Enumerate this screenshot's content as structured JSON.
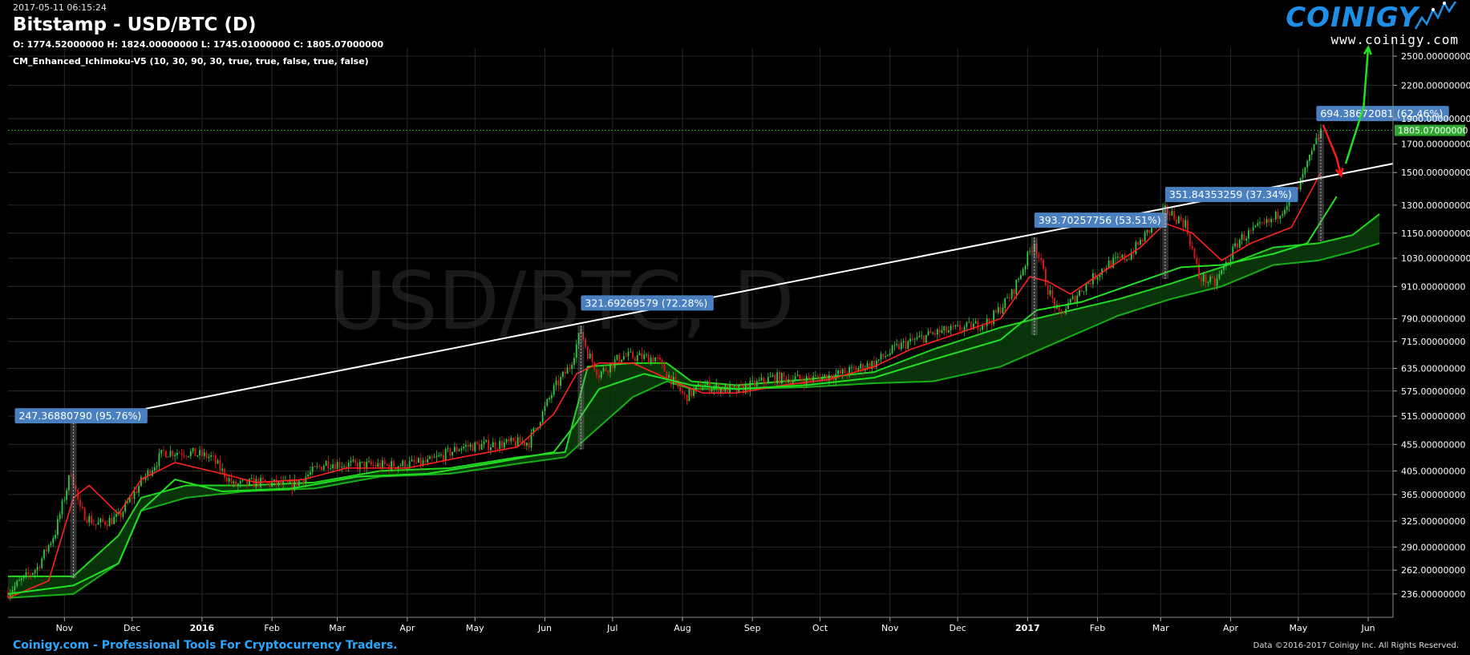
{
  "header": {
    "timestamp": "2017-05-11 06:15:24",
    "title": "Bitstamp - USD/BTC (D)",
    "ohlc": "O: 1774.52000000 H: 1824.00000000 L: 1745.01000000 C: 1805.07000000",
    "indicator": "CM_Enhanced_Ichimoku-V5 (10, 30, 90, 30, true, true, false, true, false)"
  },
  "logo": {
    "brand": "COINIGY",
    "url": "www.coinigy.com",
    "icon": "logo-spark-icon"
  },
  "watermark": "USD/BTC, D",
  "footer": {
    "left": "Coinigy.com - Professional Tools For Cryptocurrency Traders.",
    "right": "Data ©2016-2017 Coinigy Inc. All Rights Reserved."
  },
  "colors": {
    "background": "#000000",
    "grid": "#2a2a2a",
    "candle_up": "#2ecc40",
    "candle_down": "#e01818",
    "conversion_line": "#ff2020",
    "base_line": "#22e022",
    "cloud_bull": "#0a3a0a",
    "cloud_bear": "#3a0a0a",
    "trendline": "#ffffff",
    "label_bg": "#4a80c0",
    "price_tag": "#2ea82e"
  },
  "chart_data": {
    "type": "candlestick",
    "title": "Bitstamp - USD/BTC (D)",
    "xlabel": "",
    "ylabel": "",
    "x_tick_labels": [
      "Nov",
      "Dec",
      "2016",
      "Feb",
      "Mar",
      "Apr",
      "May",
      "Jun",
      "Jul",
      "Aug",
      "Sep",
      "Oct",
      "Nov",
      "Dec",
      "2017",
      "Feb",
      "Mar",
      "Apr",
      "May",
      "Jun"
    ],
    "x_tick_dates": [
      "2015-11-01",
      "2015-12-01",
      "2016-01-01",
      "2016-02-01",
      "2016-03-01",
      "2016-04-01",
      "2016-05-01",
      "2016-06-01",
      "2016-07-01",
      "2016-08-01",
      "2016-09-01",
      "2016-10-01",
      "2016-11-01",
      "2016-12-01",
      "2017-01-01",
      "2017-02-01",
      "2017-03-01",
      "2017-04-01",
      "2017-05-01",
      "2017-06-01"
    ],
    "xlim": [
      "2015-10-07",
      "2017-06-12"
    ],
    "y_scale": "log",
    "y_tick_labels": [
      "236.00000000",
      "262.00000000",
      "290.00000000",
      "325.00000000",
      "365.00000000",
      "405.00000000",
      "455.00000000",
      "515.00000000",
      "575.00000000",
      "635.00000000",
      "715.00000000",
      "790.00000000",
      "910.00000000",
      "1030.00000000",
      "1150.00000000",
      "1300.00000000",
      "1500.00000000",
      "1700.00000000",
      "1900.00000000",
      "2200.00000000",
      "2500.00000000"
    ],
    "y_tick_values": [
      236,
      262,
      290,
      325,
      365,
      405,
      455,
      515,
      575,
      635,
      715,
      790,
      910,
      1030,
      1150,
      1300,
      1500,
      1700,
      1900,
      2200,
      2500
    ],
    "ylim": [
      213,
      2590
    ],
    "grid": true,
    "last_price": {
      "label": "1805.07000000",
      "value": 1805.07
    },
    "price_key": [
      [
        "2015-10-07",
        238
      ],
      [
        "2015-10-20",
        265
      ],
      [
        "2015-10-28",
        310
      ],
      [
        "2015-11-04",
        405
      ],
      [
        "2015-11-08",
        340
      ],
      [
        "2015-11-15",
        320
      ],
      [
        "2015-11-25",
        330
      ],
      [
        "2015-12-05",
        385
      ],
      [
        "2015-12-15",
        440
      ],
      [
        "2015-12-25",
        440
      ],
      [
        "2016-01-05",
        430
      ],
      [
        "2016-01-15",
        380
      ],
      [
        "2016-01-25",
        385
      ],
      [
        "2016-02-10",
        380
      ],
      [
        "2016-02-25",
        420
      ],
      [
        "2016-03-10",
        415
      ],
      [
        "2016-03-25",
        415
      ],
      [
        "2016-04-10",
        420
      ],
      [
        "2016-04-25",
        450
      ],
      [
        "2016-05-10",
        455
      ],
      [
        "2016-05-25",
        460
      ],
      [
        "2016-06-05",
        580
      ],
      [
        "2016-06-12",
        640
      ],
      [
        "2016-06-17",
        750
      ],
      [
        "2016-06-20",
        680
      ],
      [
        "2016-06-25",
        620
      ],
      [
        "2016-07-05",
        670
      ],
      [
        "2016-07-20",
        665
      ],
      [
        "2016-08-02",
        560
      ],
      [
        "2016-08-10",
        590
      ],
      [
        "2016-08-25",
        575
      ],
      [
        "2016-09-10",
        610
      ],
      [
        "2016-09-25",
        605
      ],
      [
        "2016-10-10",
        620
      ],
      [
        "2016-10-25",
        650
      ],
      [
        "2016-11-05",
        700
      ],
      [
        "2016-11-20",
        740
      ],
      [
        "2016-12-05",
        760
      ],
      [
        "2016-12-15",
        780
      ],
      [
        "2016-12-25",
        880
      ],
      [
        "2017-01-04",
        1110
      ],
      [
        "2017-01-10",
        900
      ],
      [
        "2017-01-15",
        800
      ],
      [
        "2017-01-25",
        900
      ],
      [
        "2017-02-05",
        1000
      ],
      [
        "2017-02-15",
        1040
      ],
      [
        "2017-02-25",
        1180
      ],
      [
        "2017-03-03",
        1270
      ],
      [
        "2017-03-12",
        1200
      ],
      [
        "2017-03-18",
        950
      ],
      [
        "2017-03-25",
        920
      ],
      [
        "2017-04-05",
        1120
      ],
      [
        "2017-04-20",
        1220
      ],
      [
        "2017-05-01",
        1400
      ],
      [
        "2017-05-05",
        1550
      ],
      [
        "2017-05-11",
        1805
      ]
    ],
    "conversion_line": [
      [
        "2015-10-07",
        232
      ],
      [
        "2015-10-25",
        250
      ],
      [
        "2015-11-05",
        360
      ],
      [
        "2015-11-12",
        380
      ],
      [
        "2015-11-25",
        335
      ],
      [
        "2015-12-05",
        390
      ],
      [
        "2015-12-20",
        420
      ],
      [
        "2016-01-10",
        400
      ],
      [
        "2016-01-25",
        385
      ],
      [
        "2016-02-15",
        390
      ],
      [
        "2016-03-05",
        410
      ],
      [
        "2016-04-01",
        410
      ],
      [
        "2016-04-25",
        430
      ],
      [
        "2016-05-20",
        450
      ],
      [
        "2016-06-05",
        520
      ],
      [
        "2016-06-15",
        620
      ],
      [
        "2016-06-25",
        650
      ],
      [
        "2016-07-10",
        650
      ],
      [
        "2016-07-28",
        600
      ],
      [
        "2016-08-10",
        570
      ],
      [
        "2016-08-25",
        570
      ],
      [
        "2016-09-15",
        590
      ],
      [
        "2016-10-05",
        605
      ],
      [
        "2016-10-25",
        640
      ],
      [
        "2016-11-10",
        690
      ],
      [
        "2016-12-01",
        740
      ],
      [
        "2016-12-20",
        790
      ],
      [
        "2017-01-02",
        950
      ],
      [
        "2017-01-10",
        930
      ],
      [
        "2017-01-20",
        880
      ],
      [
        "2017-02-05",
        980
      ],
      [
        "2017-02-20",
        1080
      ],
      [
        "2017-03-03",
        1200
      ],
      [
        "2017-03-15",
        1150
      ],
      [
        "2017-03-28",
        1020
      ],
      [
        "2017-04-10",
        1100
      ],
      [
        "2017-04-28",
        1180
      ],
      [
        "2017-05-11",
        1500
      ]
    ],
    "base_line": [
      [
        "2015-10-07",
        236
      ],
      [
        "2015-11-05",
        245
      ],
      [
        "2015-11-25",
        270
      ],
      [
        "2015-12-05",
        340
      ],
      [
        "2015-12-20",
        390
      ],
      [
        "2016-01-10",
        370
      ],
      [
        "2016-02-10",
        375
      ],
      [
        "2016-03-10",
        395
      ],
      [
        "2016-04-10",
        400
      ],
      [
        "2016-05-10",
        420
      ],
      [
        "2016-06-05",
        440
      ],
      [
        "2016-06-15",
        500
      ],
      [
        "2016-06-25",
        580
      ],
      [
        "2016-07-15",
        620
      ],
      [
        "2016-08-05",
        590
      ],
      [
        "2016-08-25",
        580
      ],
      [
        "2016-09-25",
        590
      ],
      [
        "2016-10-25",
        610
      ],
      [
        "2016-11-20",
        660
      ],
      [
        "2016-12-20",
        720
      ],
      [
        "2017-01-05",
        820
      ],
      [
        "2017-01-25",
        850
      ],
      [
        "2017-02-20",
        930
      ],
      [
        "2017-03-10",
        990
      ],
      [
        "2017-03-28",
        1000
      ],
      [
        "2017-04-20",
        1050
      ],
      [
        "2017-05-05",
        1100
      ],
      [
        "2017-05-18",
        1350
      ]
    ],
    "cloud": [
      [
        "2015-10-07",
        255,
        232
      ],
      [
        "2015-11-05",
        255,
        236
      ],
      [
        "2015-11-25",
        305,
        270
      ],
      [
        "2015-12-05",
        360,
        340
      ],
      [
        "2015-12-25",
        380,
        360
      ],
      [
        "2016-01-20",
        380,
        370
      ],
      [
        "2016-02-20",
        385,
        375
      ],
      [
        "2016-03-20",
        405,
        395
      ],
      [
        "2016-04-20",
        410,
        400
      ],
      [
        "2016-05-20",
        430,
        418
      ],
      [
        "2016-06-10",
        440,
        430
      ],
      [
        "2016-06-20",
        640,
        470
      ],
      [
        "2016-07-10",
        650,
        560
      ],
      [
        "2016-07-25",
        650,
        600
      ],
      [
        "2016-08-05",
        600,
        580
      ],
      [
        "2016-08-25",
        590,
        580
      ],
      [
        "2016-09-25",
        605,
        585
      ],
      [
        "2016-10-25",
        625,
        595
      ],
      [
        "2016-11-20",
        690,
        600
      ],
      [
        "2016-12-20",
        760,
        640
      ],
      [
        "2017-01-10",
        800,
        700
      ],
      [
        "2017-02-10",
        860,
        800
      ],
      [
        "2017-03-05",
        920,
        860
      ],
      [
        "2017-03-28",
        990,
        910
      ],
      [
        "2017-04-20",
        1080,
        1000
      ],
      [
        "2017-05-10",
        1100,
        1020
      ],
      [
        "2017-05-25",
        1140,
        1060
      ],
      [
        "2017-06-06",
        1250,
        1100
      ]
    ],
    "trendline": {
      "from": [
        "2015-11-05",
        500
      ],
      "to": [
        "2017-06-12",
        1560
      ]
    },
    "annotations": [
      {
        "text": "247.36880790 (95.76%)",
        "x": "2015-10-10",
        "y": 515,
        "from": [
          "2015-11-05",
          253
        ],
        "to": [
          "2015-11-05",
          500
        ]
      },
      {
        "text": "321.69269579 (72.28%)",
        "x": "2016-06-17",
        "y": 845,
        "from": [
          "2016-06-17",
          445
        ],
        "to": [
          "2016-06-17",
          767
        ]
      },
      {
        "text": "393.70257756 (53.51%)",
        "x": "2017-01-04",
        "y": 1215,
        "from": [
          "2017-01-04",
          735
        ],
        "to": [
          "2017-01-04",
          1129
        ]
      },
      {
        "text": "351.84353259 (37.34%)",
        "x": "2017-03-03",
        "y": 1360,
        "from": [
          "2017-03-03",
          940
        ],
        "to": [
          "2017-03-03",
          1292
        ]
      },
      {
        "text": "694.38672081 (62.46%)",
        "x": "2017-05-09",
        "y": 1940,
        "from": [
          "2017-05-11",
          1110
        ],
        "to": [
          "2017-05-11",
          1805
        ]
      }
    ],
    "arrows": [
      {
        "color": "red",
        "points": [
          [
            "2017-05-12",
            1850
          ],
          [
            "2017-05-18",
            1600
          ],
          [
            "2017-05-20",
            1480
          ]
        ]
      },
      {
        "color": "green",
        "points": [
          [
            "2017-05-22",
            1560
          ],
          [
            "2017-05-30",
            2000
          ],
          [
            "2017-06-01",
            2600
          ]
        ]
      }
    ]
  }
}
